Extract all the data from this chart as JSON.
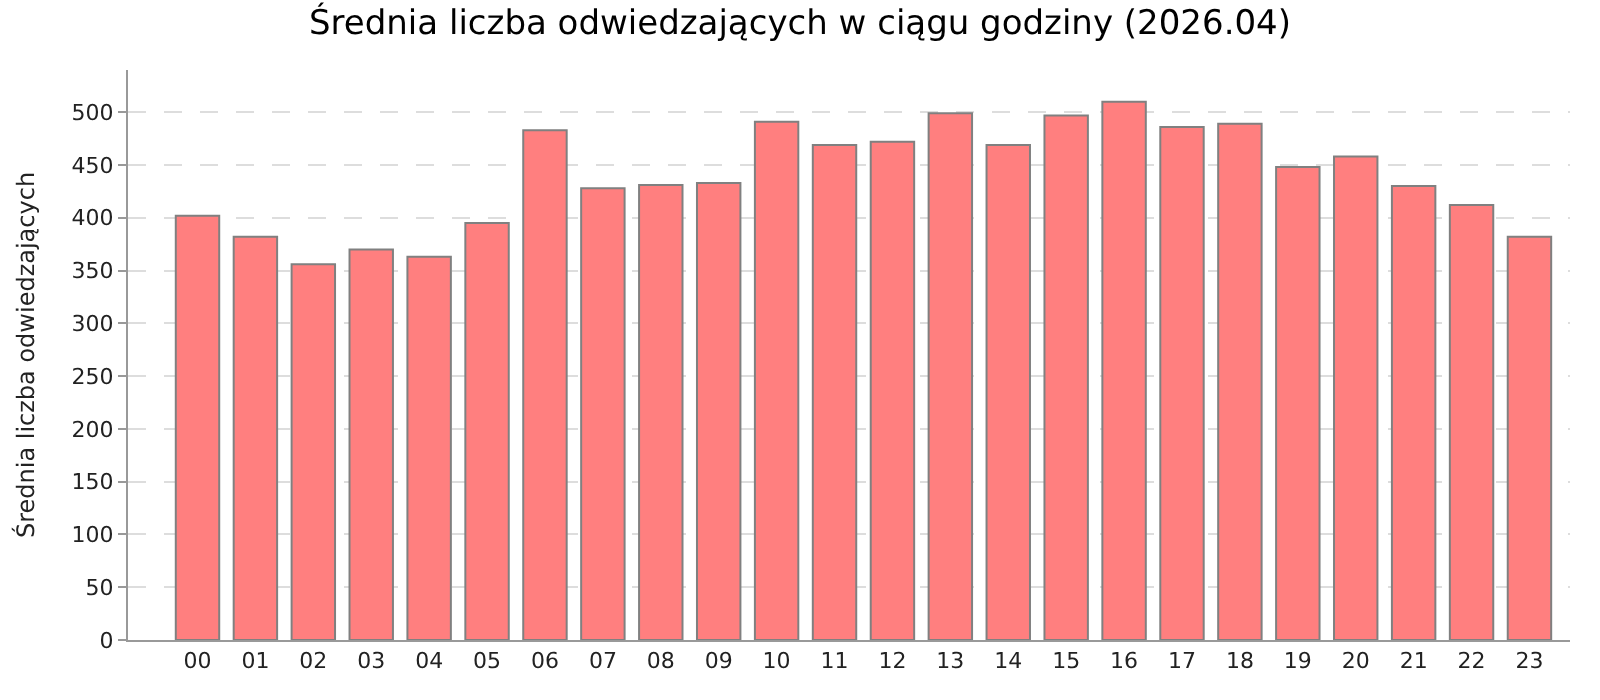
{
  "chart_data": {
    "type": "bar",
    "title": "Średnia liczba odwiedzających w ciągu godziny (2026.04)",
    "ylabel": "Średnia liczba odwiedzających",
    "categories": [
      "00",
      "01",
      "02",
      "03",
      "04",
      "05",
      "06",
      "07",
      "08",
      "09",
      "10",
      "11",
      "12",
      "13",
      "14",
      "15",
      "16",
      "17",
      "18",
      "19",
      "20",
      "21",
      "22",
      "23"
    ],
    "values": [
      402,
      382,
      356,
      370,
      363,
      395,
      483,
      428,
      431,
      433,
      491,
      469,
      472,
      499,
      469,
      497,
      510,
      486,
      489,
      448,
      458,
      430,
      412,
      382
    ],
    "color": "#ff7f7f",
    "ylim": [
      0,
      540
    ],
    "yticks": [
      0,
      50,
      100,
      150,
      200,
      250,
      300,
      350,
      400,
      450,
      500
    ],
    "grid": "y"
  }
}
